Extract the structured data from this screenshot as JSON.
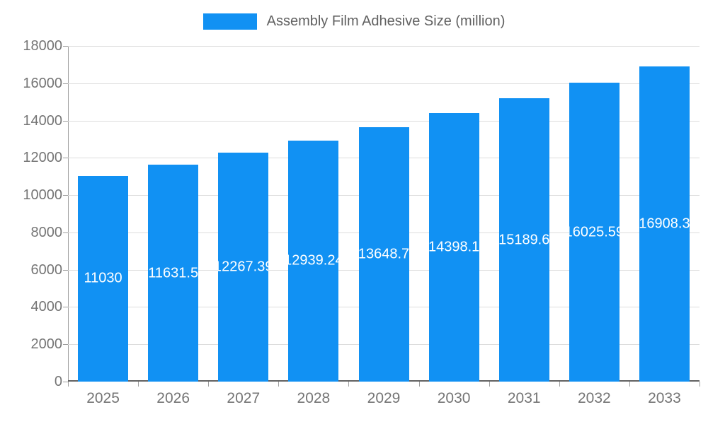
{
  "chart_data": {
    "type": "bar",
    "title": "Assembly Film Adhesive Size (million)",
    "categories": [
      "2025",
      "2026",
      "2027",
      "2028",
      "2029",
      "2030",
      "2031",
      "2032",
      "2033"
    ],
    "values": [
      11030,
      11631.5,
      12267.39,
      12939.24,
      13648.7,
      14398.1,
      15189.6,
      16025.59,
      16908.3
    ],
    "xlabel": "",
    "ylabel": "",
    "ylim": [
      0,
      18000
    ],
    "yticks": [
      0,
      2000,
      4000,
      6000,
      8000,
      10000,
      12000,
      14000,
      16000,
      18000
    ],
    "grid": true,
    "legend_position": "top",
    "colors": {
      "bar": "#1191F3",
      "bar_value_label": "#FFFFFF",
      "axis_text": "#757575",
      "legend_text": "#616161",
      "gridline": "#DDDDDD",
      "axis_line": "#9E9E9E",
      "axis_line_strong": "#616161"
    }
  }
}
